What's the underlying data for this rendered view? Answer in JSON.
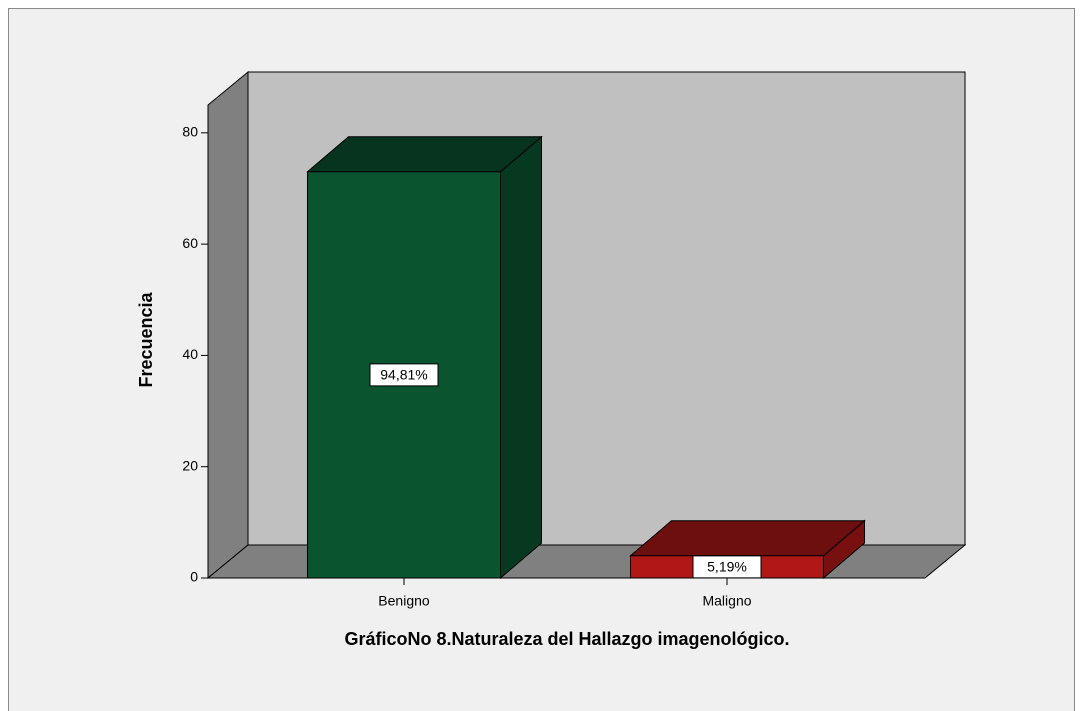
{
  "chart_data": {
    "type": "bar3d",
    "title": "GráficoNo 8.Naturaleza del Hallazgo imagenológico.",
    "y_label": "Frecuencia",
    "categories": [
      "Benigno",
      "Maligno"
    ],
    "values": [
      73,
      4
    ],
    "percentages": [
      94.81,
      5.19
    ],
    "percentage_labels": [
      "94,81%",
      "5,19%"
    ],
    "colors": [
      "#0b5430",
      "#b01818"
    ],
    "ylim": [
      0,
      85
    ],
    "yticks": [
      0,
      20,
      40,
      60,
      80
    ],
    "grid": false
  }
}
